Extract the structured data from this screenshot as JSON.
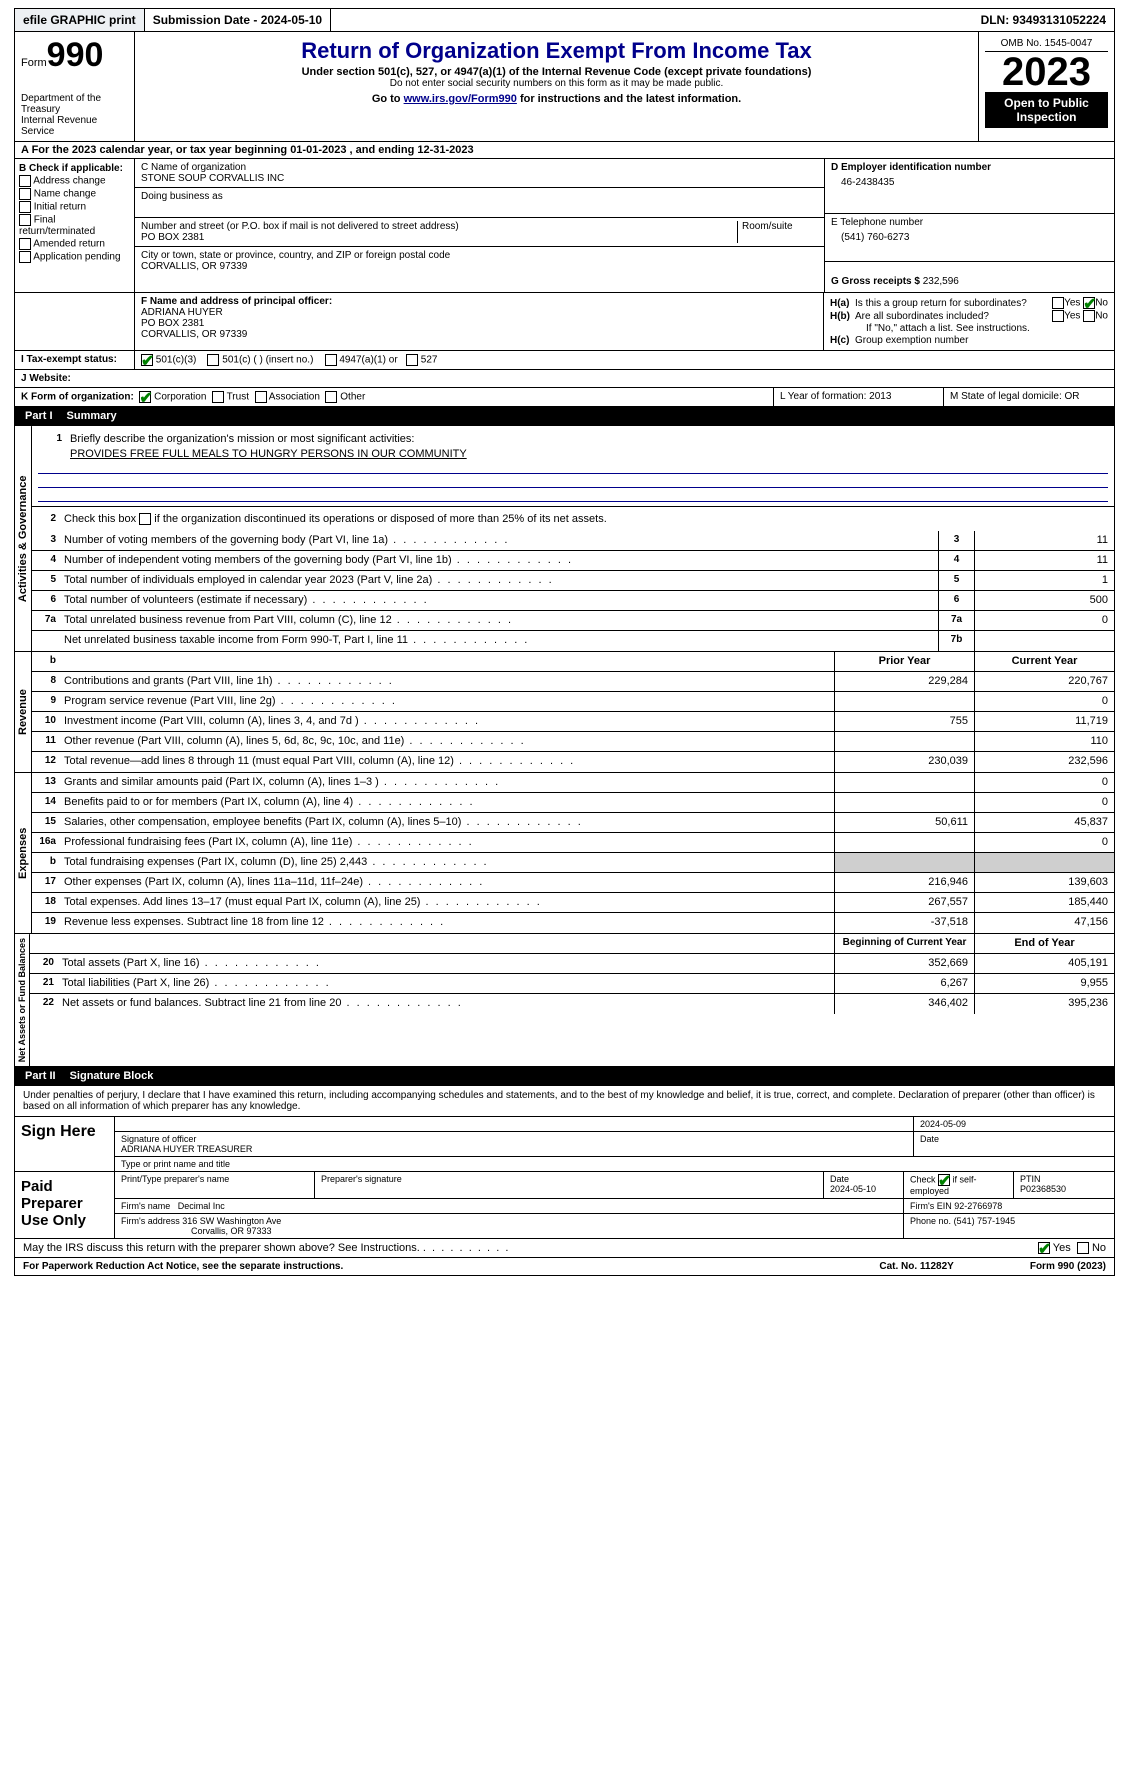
{
  "topbar": {
    "efile": "efile GRAPHIC print",
    "submission": "Submission Date - 2024-05-10",
    "dln": "DLN: 93493131052224"
  },
  "header": {
    "form_label": "Form",
    "form_num": "990",
    "dept": "Department of the Treasury",
    "irs": "Internal Revenue Service",
    "title": "Return of Organization Exempt From Income Tax",
    "sub1": "Under section 501(c), 527, or 4947(a)(1) of the Internal Revenue Code (except private foundations)",
    "sub2": "Do not enter social security numbers on this form as it may be made public.",
    "sub3_pre": "Go to ",
    "sub3_link": "www.irs.gov/Form990",
    "sub3_post": " for instructions and the latest information.",
    "omb": "OMB No. 1545-0047",
    "year": "2023",
    "open": "Open to Public Inspection"
  },
  "row_a": "A  For the 2023 calendar year, or tax year beginning 01-01-2023    , and ending 12-31-2023",
  "col_b": {
    "head": "B Check if applicable:",
    "opts": [
      "Address change",
      "Name change",
      "Initial return",
      "Final return/terminated",
      "Amended return",
      "Application pending"
    ]
  },
  "col_c": {
    "name_lbl": "C Name of organization",
    "name": "STONE SOUP CORVALLIS INC",
    "dba_lbl": "Doing business as",
    "addr_lbl": "Number and street (or P.O. box if mail is not delivered to street address)",
    "room_lbl": "Room/suite",
    "addr": "PO BOX 2381",
    "city_lbl": "City or town, state or province, country, and ZIP or foreign postal code",
    "city": "CORVALLIS, OR  97339"
  },
  "col_de": {
    "d_lbl": "D Employer identification number",
    "d_val": "46-2438435",
    "e_lbl": "E Telephone number",
    "e_val": "(541) 760-6273",
    "g_lbl": "G Gross receipts $",
    "g_val": "232,596"
  },
  "row_f": {
    "lbl": "F  Name and address of principal officer:",
    "l1": "ADRIANA HUYER",
    "l2": "PO BOX 2381",
    "l3": "CORVALLIS, OR  97339"
  },
  "row_h": {
    "ha": "H(a)  Is this a group return for subordinates?",
    "hb": "H(b)  Are all subordinates included?",
    "hb2": "If \"No,\" attach a list. See instructions.",
    "hc": "H(c)  Group exemption number",
    "yes": "Yes",
    "no": "No"
  },
  "row_i": {
    "lbl": "I     Tax-exempt status:",
    "o1": "501(c)(3)",
    "o2": "501(c) (  ) (insert no.)",
    "o3": "4947(a)(1) or",
    "o4": "527"
  },
  "row_j": {
    "lbl": "J    Website:"
  },
  "row_k": {
    "lbl": "K Form of organization:",
    "o1": "Corporation",
    "o2": "Trust",
    "o3": "Association",
    "o4": "Other",
    "l_lbl": "L Year of formation: 2013",
    "m_lbl": "M State of legal domicile: OR"
  },
  "part1": {
    "num": "Part I",
    "title": "Summary"
  },
  "summary": {
    "sec1_label": "Activities & Governance",
    "sec2_label": "Revenue",
    "sec3_label": "Expenses",
    "sec4_label": "Net Assets or Fund Balances",
    "l1": "Briefly describe the organization's mission or most significant activities:",
    "l1v": "PROVIDES FREE FULL MEALS TO HUNGRY PERSONS IN OUR COMMUNITY",
    "l2": "Check this box        if the organization discontinued its operations or disposed of more than 25% of its net assets.",
    "rows_gov": [
      {
        "n": "3",
        "t": "Number of voting members of the governing body (Part VI, line 1a)",
        "b": "3",
        "v": "11"
      },
      {
        "n": "4",
        "t": "Number of independent voting members of the governing body (Part VI, line 1b)",
        "b": "4",
        "v": "11"
      },
      {
        "n": "5",
        "t": "Total number of individuals employed in calendar year 2023 (Part V, line 2a)",
        "b": "5",
        "v": "1"
      },
      {
        "n": "6",
        "t": "Total number of volunteers (estimate if necessary)",
        "b": "6",
        "v": "500"
      },
      {
        "n": "7a",
        "t": "Total unrelated business revenue from Part VIII, column (C), line 12",
        "b": "7a",
        "v": "0"
      },
      {
        "n": "",
        "t": "Net unrelated business taxable income from Form 990-T, Part I, line 11",
        "b": "7b",
        "v": ""
      }
    ],
    "col_hdr_prior": "Prior Year",
    "col_hdr_curr": "Current Year",
    "col_hdr_begin": "Beginning of Current Year",
    "col_hdr_end": "End of Year",
    "rows_rev": [
      {
        "n": "8",
        "t": "Contributions and grants (Part VIII, line 1h)",
        "p": "229,284",
        "c": "220,767"
      },
      {
        "n": "9",
        "t": "Program service revenue (Part VIII, line 2g)",
        "p": "",
        "c": "0"
      },
      {
        "n": "10",
        "t": "Investment income (Part VIII, column (A), lines 3, 4, and 7d )",
        "p": "755",
        "c": "11,719"
      },
      {
        "n": "11",
        "t": "Other revenue (Part VIII, column (A), lines 5, 6d, 8c, 9c, 10c, and 11e)",
        "p": "",
        "c": "110"
      },
      {
        "n": "12",
        "t": "Total revenue—add lines 8 through 11 (must equal Part VIII, column (A), line 12)",
        "p": "230,039",
        "c": "232,596"
      }
    ],
    "rows_exp": [
      {
        "n": "13",
        "t": "Grants and similar amounts paid (Part IX, column (A), lines 1–3 )",
        "p": "",
        "c": "0"
      },
      {
        "n": "14",
        "t": "Benefits paid to or for members (Part IX, column (A), line 4)",
        "p": "",
        "c": "0"
      },
      {
        "n": "15",
        "t": "Salaries, other compensation, employee benefits (Part IX, column (A), lines 5–10)",
        "p": "50,611",
        "c": "45,837"
      },
      {
        "n": "16a",
        "t": "Professional fundraising fees (Part IX, column (A), line 11e)",
        "p": "",
        "c": "0"
      },
      {
        "n": "b",
        "t": "Total fundraising expenses (Part IX, column (D), line 25) 2,443",
        "p": "shade",
        "c": "shade"
      },
      {
        "n": "17",
        "t": "Other expenses (Part IX, column (A), lines 11a–11d, 11f–24e)",
        "p": "216,946",
        "c": "139,603"
      },
      {
        "n": "18",
        "t": "Total expenses. Add lines 13–17 (must equal Part IX, column (A), line 25)",
        "p": "267,557",
        "c": "185,440"
      },
      {
        "n": "19",
        "t": "Revenue less expenses. Subtract line 18 from line 12",
        "p": "-37,518",
        "c": "47,156"
      }
    ],
    "rows_net": [
      {
        "n": "20",
        "t": "Total assets (Part X, line 16)",
        "p": "352,669",
        "c": "405,191"
      },
      {
        "n": "21",
        "t": "Total liabilities (Part X, line 26)",
        "p": "6,267",
        "c": "9,955"
      },
      {
        "n": "22",
        "t": "Net assets or fund balances. Subtract line 21 from line 20",
        "p": "346,402",
        "c": "395,236"
      }
    ]
  },
  "part2": {
    "num": "Part II",
    "title": "Signature Block"
  },
  "sig": {
    "decl": "Under penalties of perjury, I declare that I have examined this return, including accompanying schedules and statements, and to the best of my knowledge and belief, it is true, correct, and complete. Declaration of preparer (other than officer) is based on all information of which preparer has any knowledge.",
    "sign_here": "Sign Here",
    "paid": "Paid Preparer Use Only",
    "sig_off": "Signature of officer",
    "off_name": "ADRIANA HUYER  TREASURER",
    "type_name": "Type or print name and title",
    "date_lbl": "Date",
    "date1": "2024-05-09",
    "prep_name_lbl": "Print/Type preparer's name",
    "prep_sig_lbl": "Preparer's signature",
    "date2": "2024-05-10",
    "check_self": "Check         if self-employed",
    "ptin_lbl": "PTIN",
    "ptin": "P02368530",
    "firm_name_lbl": "Firm's name",
    "firm_name": "Decimal Inc",
    "firm_ein_lbl": "Firm's EIN",
    "firm_ein": "92-2766978",
    "firm_addr_lbl": "Firm's address",
    "firm_addr1": "316 SW Washington Ave",
    "firm_addr2": "Corvallis, OR  97333",
    "phone_lbl": "Phone no.",
    "phone": "(541) 757-1945",
    "may_irs": "May the IRS discuss this return with the preparer shown above? See Instructions.",
    "yes": "Yes",
    "no": "No"
  },
  "footer": {
    "pra": "For Paperwork Reduction Act Notice, see the separate instructions.",
    "cat": "Cat. No. 11282Y",
    "form": "Form 990 (2023)"
  }
}
